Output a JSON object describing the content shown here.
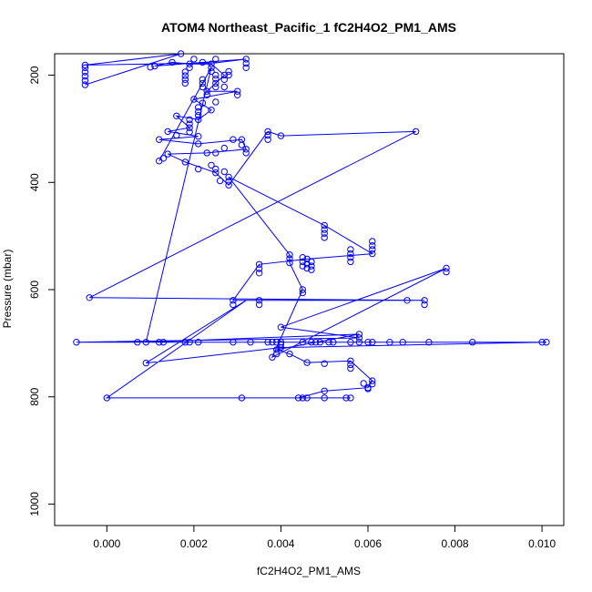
{
  "chart_data": {
    "type": "scatter",
    "title": "ATOM4 Northeast_Pacific_1 fC2H4O2_PM1_AMS",
    "xlabel": "fC2H4O2_PM1_AMS",
    "ylabel": "Pressure (mbar)",
    "xlim": [
      -0.0012,
      0.0105
    ],
    "ylim": [
      1040,
      160
    ],
    "y_reversed": true,
    "grid": false,
    "legend": "none",
    "series_color": "#0000ff",
    "xticks": [
      {
        "value": 0.0,
        "label": "0.000"
      },
      {
        "value": 0.002,
        "label": "0.002"
      },
      {
        "value": 0.004,
        "label": "0.004"
      },
      {
        "value": 0.006,
        "label": "0.006"
      },
      {
        "value": 0.008,
        "label": "0.008"
      },
      {
        "value": 0.01,
        "label": "0.010"
      }
    ],
    "yticks": [
      {
        "value": 200,
        "label": "200"
      },
      {
        "value": 400,
        "label": "400"
      },
      {
        "value": 600,
        "label": "600"
      },
      {
        "value": 800,
        "label": "800"
      },
      {
        "value": 1000,
        "label": "1000"
      }
    ],
    "series": [
      {
        "values": [
          [
            -0.0005,
            218
          ],
          [
            -0.0005,
            210
          ],
          [
            -0.0005,
            202
          ],
          [
            -0.0005,
            194
          ],
          [
            -0.0005,
            186
          ],
          [
            0.0017,
            160
          ],
          [
            -0.0005,
            181
          ],
          [
            0.001,
            185
          ],
          [
            0.0011,
            183
          ],
          [
            0.0015,
            176
          ],
          [
            0.002,
            170
          ],
          [
            0.0022,
            176
          ],
          [
            0.0025,
            170
          ],
          [
            0.0032,
            170
          ],
          [
            0.0032,
            178
          ],
          [
            0.0032,
            186
          ],
          [
            0.0028,
            193
          ],
          [
            0.0028,
            200
          ],
          [
            0.0025,
            200
          ],
          [
            0.0025,
            207
          ],
          [
            0.0025,
            215
          ],
          [
            0.0025,
            222
          ],
          [
            0.0022,
            222
          ],
          [
            0.0022,
            215
          ],
          [
            0.0022,
            208
          ],
          [
            0.0018,
            208
          ],
          [
            0.0018,
            215
          ],
          [
            0.0018,
            201
          ],
          [
            0.0018,
            194
          ],
          [
            0.0019,
            186
          ],
          [
            0.0019,
            179
          ],
          [
            0.0024,
            179
          ],
          [
            0.0024,
            186
          ],
          [
            0.0024,
            193
          ],
          [
            0.0027,
            200
          ],
          [
            0.0027,
            208
          ],
          [
            0.0027,
            222
          ],
          [
            0.0023,
            230
          ],
          [
            0.0023,
            237
          ],
          [
            0.003,
            230
          ],
          [
            0.003,
            237
          ],
          [
            0.002,
            245
          ],
          [
            0.0022,
            252
          ],
          [
            0.0021,
            260
          ],
          [
            0.0021,
            268
          ],
          [
            0.0024,
            265
          ],
          [
            0.0025,
            250
          ],
          [
            0.0021,
            275
          ],
          [
            0.0021,
            283
          ],
          [
            0.0016,
            276
          ],
          [
            0.0019,
            283
          ],
          [
            0.0019,
            291
          ],
          [
            0.0019,
            298
          ],
          [
            0.0014,
            305
          ],
          [
            0.0016,
            312
          ],
          [
            0.0019,
            306
          ],
          [
            0.0021,
            314
          ],
          [
            0.0012,
            320
          ],
          [
            0.0021,
            328
          ],
          [
            0.0029,
            320
          ],
          [
            0.0031,
            320
          ],
          [
            0.0031,
            330
          ],
          [
            0.0032,
            338
          ],
          [
            0.0032,
            345
          ],
          [
            0.0025,
            345
          ],
          [
            0.0027,
            336
          ],
          [
            0.0023,
            345
          ],
          [
            0.0012,
            360
          ],
          [
            0.0013,
            355
          ],
          [
            0.0014,
            347
          ],
          [
            0.0018,
            362
          ],
          [
            0.0021,
            375
          ],
          [
            0.0024,
            368
          ],
          [
            0.0025,
            375
          ],
          [
            0.0025,
            382
          ],
          [
            0.0027,
            380
          ],
          [
            0.0028,
            390
          ],
          [
            0.0028,
            398
          ],
          [
            0.0028,
            405
          ],
          [
            0.0026,
            397
          ],
          [
            0.0037,
            305
          ],
          [
            0.0037,
            312
          ],
          [
            0.0037,
            320
          ],
          [
            0.004,
            313
          ],
          [
            0.0071,
            305
          ],
          [
            0.005,
            480
          ],
          [
            0.005,
            488
          ],
          [
            0.005,
            495
          ],
          [
            0.005,
            503
          ],
          [
            0.0061,
            510
          ],
          [
            0.0061,
            518
          ],
          [
            0.0061,
            525
          ],
          [
            0.0061,
            533
          ],
          [
            0.0056,
            525
          ],
          [
            0.0056,
            533
          ],
          [
            0.0056,
            540
          ],
          [
            0.0056,
            548
          ],
          [
            0.0042,
            535
          ],
          [
            0.0042,
            542
          ],
          [
            0.0042,
            550
          ],
          [
            0.0045,
            540
          ],
          [
            0.0045,
            548
          ],
          [
            0.0045,
            556
          ],
          [
            0.0046,
            543
          ],
          [
            0.0046,
            552
          ],
          [
            0.0046,
            560
          ],
          [
            0.0047,
            548
          ],
          [
            0.0047,
            556
          ],
          [
            0.0047,
            563
          ],
          [
            0.0035,
            553
          ],
          [
            0.0035,
            561
          ],
          [
            0.0035,
            569
          ],
          [
            0.0045,
            600
          ],
          [
            0.0045,
            606
          ],
          [
            0.0078,
            560
          ],
          [
            0.0078,
            567
          ],
          [
            -0.0004,
            615
          ],
          [
            0.0029,
            620
          ],
          [
            0.0029,
            628
          ],
          [
            0.0035,
            620
          ],
          [
            0.0035,
            628
          ],
          [
            0.0069,
            620
          ],
          [
            0.0073,
            620
          ],
          [
            0.0073,
            628
          ],
          [
            0.004,
            670
          ],
          [
            0.0058,
            683
          ],
          [
            0.0058,
            690
          ],
          [
            -0.0007,
            698
          ],
          [
            0.0007,
            698
          ],
          [
            0.0009,
            698
          ],
          [
            0.0012,
            698
          ],
          [
            0.0013,
            698
          ],
          [
            0.0018,
            698
          ],
          [
            0.0019,
            698
          ],
          [
            0.0021,
            698
          ],
          [
            0.0029,
            698
          ],
          [
            0.0033,
            698
          ],
          [
            0.0037,
            698
          ],
          [
            0.0038,
            698
          ],
          [
            0.0039,
            698
          ],
          [
            0.004,
            698
          ],
          [
            0.0045,
            698
          ],
          [
            0.0047,
            698
          ],
          [
            0.0048,
            698
          ],
          [
            0.0049,
            698
          ],
          [
            0.0051,
            698
          ],
          [
            0.0052,
            698
          ],
          [
            0.0056,
            698
          ],
          [
            0.0058,
            698
          ],
          [
            0.006,
            698
          ],
          [
            0.0061,
            698
          ],
          [
            0.0065,
            698
          ],
          [
            0.0068,
            698
          ],
          [
            0.0074,
            698
          ],
          [
            0.0084,
            698
          ],
          [
            0.01,
            698
          ],
          [
            0.0101,
            698
          ],
          [
            0.0009,
            737
          ],
          [
            0.0039,
            712
          ],
          [
            0.0039,
            720
          ],
          [
            0.0038,
            726
          ],
          [
            0.0042,
            720
          ],
          [
            0.0046,
            736
          ],
          [
            0.005,
            738
          ],
          [
            0.0056,
            733
          ],
          [
            0.0056,
            740
          ],
          [
            0.0056,
            747
          ],
          [
            0.006,
            783
          ],
          [
            0.0061,
            776
          ],
          [
            0.0061,
            770
          ],
          [
            0.0059,
            775
          ],
          [
            0.006,
            785
          ],
          [
            0.005,
            789
          ],
          [
            0.0,
            802
          ],
          [
            0.0031,
            802
          ],
          [
            0.0044,
            802
          ],
          [
            0.0045,
            802
          ],
          [
            0.0046,
            802
          ],
          [
            0.005,
            802
          ],
          [
            0.0055,
            802
          ],
          [
            0.0056,
            802
          ],
          [
            0.004,
            702
          ],
          [
            0.004,
            708
          ]
        ],
        "path": [
          [
            -0.0005,
            218
          ],
          [
            0.0017,
            160
          ],
          [
            -0.0005,
            181
          ],
          [
            0.0025,
            177
          ],
          [
            0.0032,
            170
          ],
          [
            0.0011,
            183
          ],
          [
            0.0015,
            176
          ],
          [
            0.0019,
            179
          ],
          [
            0.0024,
            179
          ],
          [
            0.0027,
            200
          ],
          [
            0.0023,
            230
          ],
          [
            0.003,
            230
          ],
          [
            0.002,
            245
          ],
          [
            0.0024,
            265
          ],
          [
            0.0021,
            283
          ],
          [
            0.0016,
            276
          ],
          [
            0.0019,
            298
          ],
          [
            0.0014,
            305
          ],
          [
            0.0021,
            314
          ],
          [
            0.0012,
            320
          ],
          [
            0.0021,
            328
          ],
          [
            0.0031,
            320
          ],
          [
            0.0032,
            338
          ],
          [
            0.0023,
            345
          ],
          [
            0.0014,
            347
          ],
          [
            0.0018,
            362
          ],
          [
            0.0025,
            382
          ],
          [
            0.0028,
            405
          ],
          [
            0.0037,
            305
          ],
          [
            0.004,
            313
          ],
          [
            0.0071,
            305
          ],
          [
            -0.0004,
            615
          ],
          [
            0.0073,
            620
          ],
          [
            0.0029,
            620
          ],
          [
            0.0035,
            553
          ],
          [
            0.0046,
            543
          ],
          [
            0.0061,
            533
          ],
          [
            0.005,
            480
          ],
          [
            0.0028,
            390
          ],
          [
            0.0042,
            535
          ],
          [
            0.0042,
            550
          ],
          [
            0.0045,
            600
          ],
          [
            0.0038,
            726
          ],
          [
            0.0078,
            560
          ],
          [
            0.004,
            670
          ],
          [
            0.0058,
            690
          ],
          [
            -0.0007,
            698
          ],
          [
            0.0101,
            698
          ],
          [
            0.004,
            708
          ],
          [
            0.0009,
            737
          ],
          [
            0.0032,
            620
          ],
          [
            0.0,
            802
          ],
          [
            0.0056,
            802
          ],
          [
            0.0044,
            802
          ],
          [
            0.005,
            789
          ],
          [
            0.006,
            783
          ],
          [
            0.0061,
            770
          ],
          [
            0.0056,
            733
          ],
          [
            0.0046,
            736
          ],
          [
            0.0042,
            720
          ],
          [
            0.0039,
            712
          ],
          [
            0.0058,
            683
          ],
          [
            0.0009,
            698
          ],
          [
            0.0024,
            186
          ],
          [
            0.0012,
            360
          ]
        ]
      }
    ]
  }
}
